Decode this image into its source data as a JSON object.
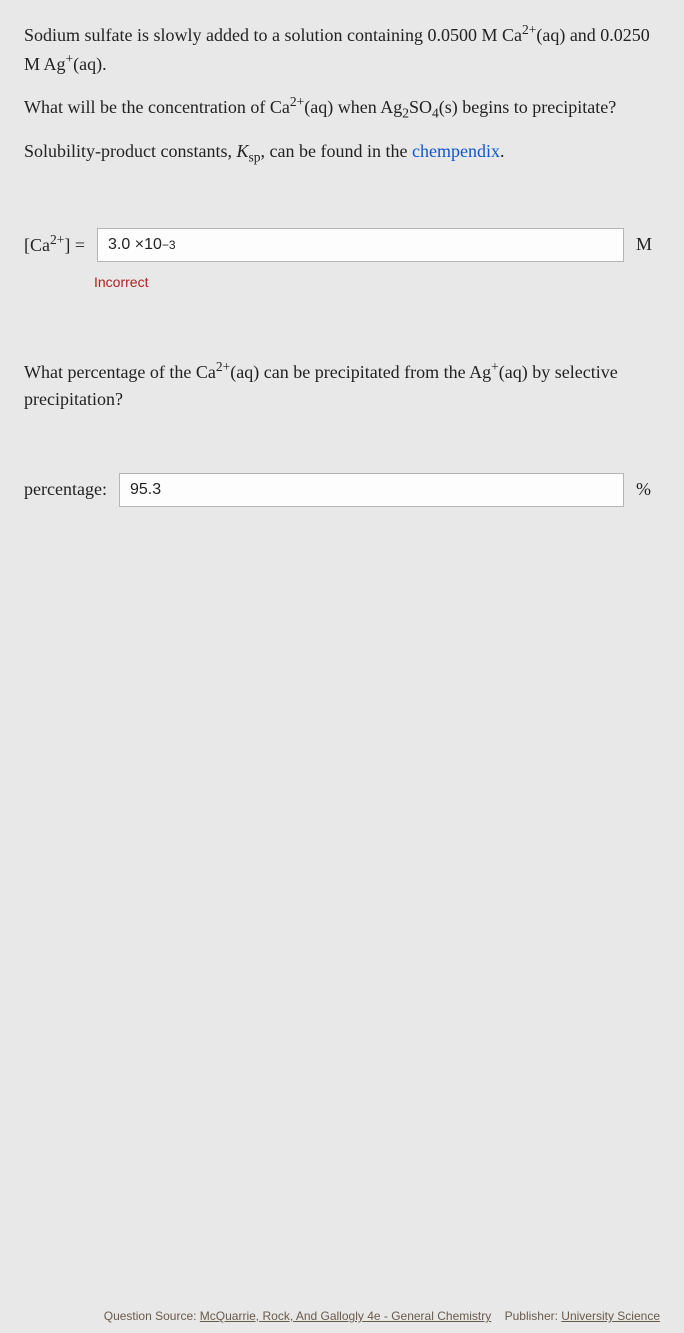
{
  "problem": {
    "line1_a": "Sodium sulfate is slowly added to a solution containing 0.0500 M Ca",
    "line1_b": "(aq) and 0.0250 M Ag",
    "line1_c": "(aq).",
    "line2_a": "What will be the concentration of Ca",
    "line2_b": "(aq) when Ag",
    "line2_c": "SO",
    "line2_d": "(s) begins to precipitate?",
    "line3_a": "Solubility-product constants, ",
    "line3_b": ", can be found in the ",
    "line3_link": "chempendix",
    "line3_c": "."
  },
  "answer1": {
    "label_a": "[Ca",
    "label_b": "] =",
    "value": "3.0 ×10",
    "exp": "−3",
    "unit": "M",
    "feedback": "Incorrect"
  },
  "question2": {
    "text_a": "What percentage of the Ca",
    "text_b": "(aq) can be precipitated from the Ag",
    "text_c": "(aq) by selective precipitation?"
  },
  "answer2": {
    "label": "percentage:",
    "value": "95.3",
    "unit": "%"
  },
  "footer": {
    "qsrc_label": "Question Source: ",
    "qsrc": "McQuarrie, Rock, And Gallogly 4e - General Chemistry",
    "pub_label": "Publisher: ",
    "pub": "University Science"
  },
  "sup2plus": "2+",
  "supplus": "+",
  "sub2": "2",
  "sub4": "4",
  "ksp_k": "K",
  "ksp_sp": "sp"
}
